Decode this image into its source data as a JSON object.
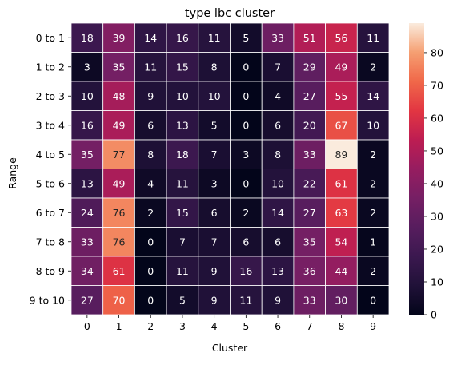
{
  "chart_data": {
    "type": "heatmap",
    "title": "type lbc cluster",
    "xlabel": "Cluster",
    "ylabel": "Range",
    "x_categories": [
      "0",
      "1",
      "2",
      "3",
      "4",
      "5",
      "6",
      "7",
      "8",
      "9"
    ],
    "y_categories": [
      "0 to 1",
      "1 to 2",
      "2 to 3",
      "3 to 4",
      "4 to 5",
      "5 to 6",
      "6 to 7",
      "7 to 8",
      "8 to 9",
      "9 to 10"
    ],
    "values": [
      [
        18,
        39,
        14,
        16,
        11,
        5,
        33,
        51,
        56,
        11
      ],
      [
        3,
        35,
        11,
        15,
        8,
        0,
        7,
        29,
        49,
        2
      ],
      [
        10,
        48,
        9,
        10,
        10,
        0,
        4,
        27,
        55,
        14
      ],
      [
        16,
        49,
        6,
        13,
        5,
        0,
        6,
        20,
        67,
        10
      ],
      [
        35,
        77,
        8,
        18,
        7,
        3,
        8,
        33,
        89,
        2
      ],
      [
        13,
        49,
        4,
        11,
        3,
        0,
        10,
        22,
        61,
        2
      ],
      [
        24,
        76,
        2,
        15,
        6,
        2,
        14,
        27,
        63,
        2
      ],
      [
        33,
        76,
        0,
        7,
        7,
        6,
        6,
        35,
        54,
        1
      ],
      [
        34,
        61,
        0,
        11,
        9,
        16,
        13,
        36,
        44,
        2
      ],
      [
        27,
        70,
        0,
        5,
        9,
        11,
        9,
        33,
        30,
        0
      ]
    ],
    "colorbar": {
      "min": 0,
      "max": 89,
      "ticks": [
        0,
        10,
        20,
        30,
        40,
        50,
        60,
        70,
        80
      ]
    },
    "colormap": "rocket",
    "annotations": true,
    "cell_gridline_color": "#ffffff"
  }
}
